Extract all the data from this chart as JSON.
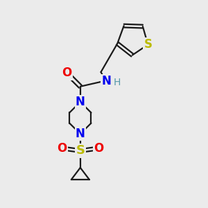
{
  "background_color": "#ebebeb",
  "bond_color": "#1a1a1a",
  "n_color": "#0000ee",
  "o_color": "#ee0000",
  "s_color": "#bbbb00",
  "h_color": "#5599aa",
  "line_width": 1.6,
  "figsize": [
    3.0,
    3.0
  ],
  "dpi": 100,
  "xlim": [
    0,
    10
  ],
  "ylim": [
    0,
    10
  ]
}
